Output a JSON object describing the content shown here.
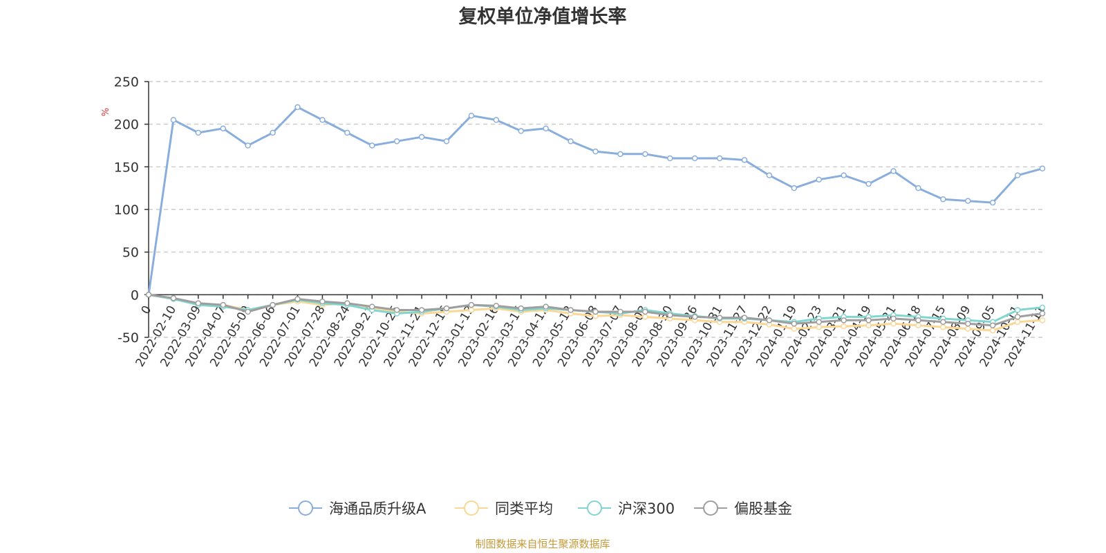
{
  "chart_data": {
    "type": "line",
    "title": "复权单位净值增长率",
    "ylabel": "%",
    "ylim": [
      -50,
      250
    ],
    "yticks": [
      250,
      200,
      150,
      100,
      50,
      0,
      -50
    ],
    "grid": "horizontal-dashed",
    "legend_position": "bottom-center",
    "x": [
      "0",
      "2022-02-10",
      "2022-03-09",
      "2022-04-07",
      "2022-05-09",
      "2022-06-06",
      "2022-07-01",
      "2022-07-28",
      "2022-08-24",
      "2022-09-21",
      "2022-10-25",
      "2022-11-21",
      "2022-12-16",
      "2023-01-13",
      "2023-02-16",
      "2023-03-15",
      "2023-04-12",
      "2023-05-12",
      "2023-06-08",
      "2023-07-07",
      "2023-08-03",
      "2023-08-30",
      "2023-09-26",
      "2023-10-31",
      "2023-11-27",
      "2023-12-22",
      "2024-01-19",
      "2024-02-23",
      "2024-03-21",
      "2024-04-19",
      "2024-05-21",
      "2024-06-18",
      "2024-07-15",
      "2024-08-09",
      "2024-09-05",
      "2024-10-11",
      "2024-11-11"
    ],
    "series": [
      {
        "name": "海通品质升级A",
        "color": "#8aaedc",
        "values": [
          0,
          205,
          190,
          195,
          175,
          190,
          220,
          205,
          190,
          175,
          180,
          185,
          180,
          210,
          205,
          192,
          195,
          180,
          168,
          165,
          165,
          160,
          160,
          160,
          158,
          140,
          125,
          135,
          140,
          130,
          145,
          125,
          112,
          110,
          108,
          140,
          148
        ]
      },
      {
        "name": "同类平均",
        "color": "#fad795",
        "values": [
          0,
          -5,
          -10,
          -12,
          -18,
          -12,
          -8,
          -12,
          -10,
          -15,
          -20,
          -22,
          -20,
          -18,
          -16,
          -20,
          -18,
          -22,
          -25,
          -24,
          -26,
          -28,
          -30,
          -32,
          -32,
          -35,
          -40,
          -38,
          -37,
          -36,
          -34,
          -36,
          -38,
          -40,
          -42,
          -32,
          -30
        ]
      },
      {
        "name": "沪深300",
        "color": "#80d5cf",
        "values": [
          0,
          -5,
          -12,
          -14,
          -18,
          -12,
          -6,
          -10,
          -12,
          -18,
          -22,
          -20,
          -16,
          -12,
          -14,
          -18,
          -16,
          -18,
          -20,
          -22,
          -18,
          -22,
          -25,
          -28,
          -28,
          -30,
          -32,
          -28,
          -26,
          -26,
          -24,
          -26,
          -28,
          -30,
          -32,
          -18,
          -15
        ]
      },
      {
        "name": "偏股基金",
        "color": "#9e9e9e",
        "values": [
          0,
          -4,
          -10,
          -12,
          -20,
          -12,
          -5,
          -8,
          -10,
          -14,
          -18,
          -18,
          -16,
          -12,
          -13,
          -16,
          -14,
          -18,
          -20,
          -20,
          -20,
          -24,
          -26,
          -27,
          -27,
          -30,
          -34,
          -32,
          -30,
          -30,
          -28,
          -30,
          -32,
          -34,
          -36,
          -26,
          -22
        ]
      }
    ]
  },
  "source_note": "制图数据来自恒生聚源数据库"
}
